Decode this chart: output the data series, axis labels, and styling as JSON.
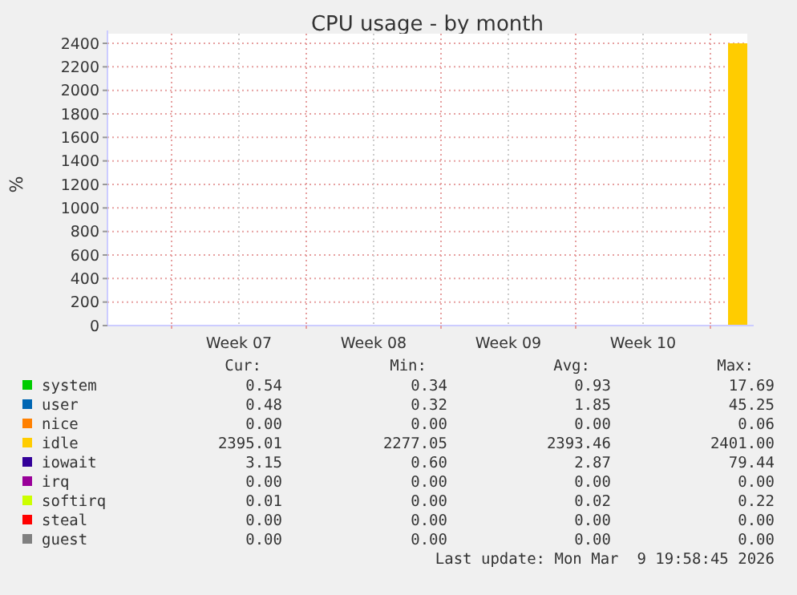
{
  "chart_data": {
    "type": "area",
    "title": "CPU usage - by month",
    "ylabel": "%",
    "x": [
      "2026-03-09T22:00",
      "2026-03-10T22:00"
    ],
    "xlim": [
      "2026-02-05T16:00",
      "2026-03-10T22:00"
    ],
    "xticks": [
      {
        "value": "2026-02-09",
        "label": null
      },
      {
        "value": "2026-02-12T12:00",
        "label": "Week 07"
      },
      {
        "value": "2026-02-16",
        "label": null
      },
      {
        "value": "2026-02-19T12:00",
        "label": "Week 08"
      },
      {
        "value": "2026-02-23",
        "label": null
      },
      {
        "value": "2026-02-26T12:00",
        "label": "Week 09"
      },
      {
        "value": "2026-03-02",
        "label": null
      },
      {
        "value": "2026-03-05T12:00",
        "label": "Week 10"
      },
      {
        "value": "2026-03-09",
        "label": null
      }
    ],
    "ylim": [
      0,
      2400
    ],
    "yticks": [
      0,
      200,
      400,
      600,
      800,
      1000,
      1200,
      1400,
      1600,
      1800,
      2000,
      2200,
      2400
    ],
    "grid": true,
    "legend": "bottom",
    "series": [
      {
        "name": "system",
        "color": "#00cc00",
        "values": [
          null,
          null
        ]
      },
      {
        "name": "user",
        "color": "#0066b3",
        "values": [
          null,
          null
        ]
      },
      {
        "name": "nice",
        "color": "#ff8000",
        "values": [
          null,
          null
        ]
      },
      {
        "name": "idle",
        "color": "#ffcc00",
        "values": [
          2400,
          2400
        ]
      },
      {
        "name": "iowait",
        "color": "#330099",
        "values": [
          null,
          null
        ]
      },
      {
        "name": "irq",
        "color": "#990099",
        "values": [
          null,
          null
        ]
      },
      {
        "name": "softirq",
        "color": "#ccff00",
        "values": [
          null,
          null
        ]
      },
      {
        "name": "steal",
        "color": "#ff0000",
        "values": [
          null,
          null
        ]
      },
      {
        "name": "guest",
        "color": "#808080",
        "values": [
          null,
          null
        ]
      }
    ],
    "annotations": [
      "Cur:",
      "Min:",
      "Avg:",
      "Max:",
      "0.54",
      "0.34",
      "0.93",
      "17.69",
      "0.48",
      "0.32",
      "1.85",
      "45.25",
      "0.00",
      "0.00",
      "0.00",
      "0.06",
      "2395.01",
      "2277.05",
      "2393.46",
      "2401.00",
      "3.15",
      "0.60",
      "2.87",
      "79.44",
      "0.00",
      "0.00",
      "0.00",
      "0.00",
      "0.01",
      "0.00",
      "0.02",
      "0.22",
      "0.00",
      "0.00",
      "0.00",
      "0.00",
      "0.00",
      "0.00",
      "0.00",
      "0.00",
      "Last update: Mon Mar  9 19:58:45 2026"
    ]
  }
}
